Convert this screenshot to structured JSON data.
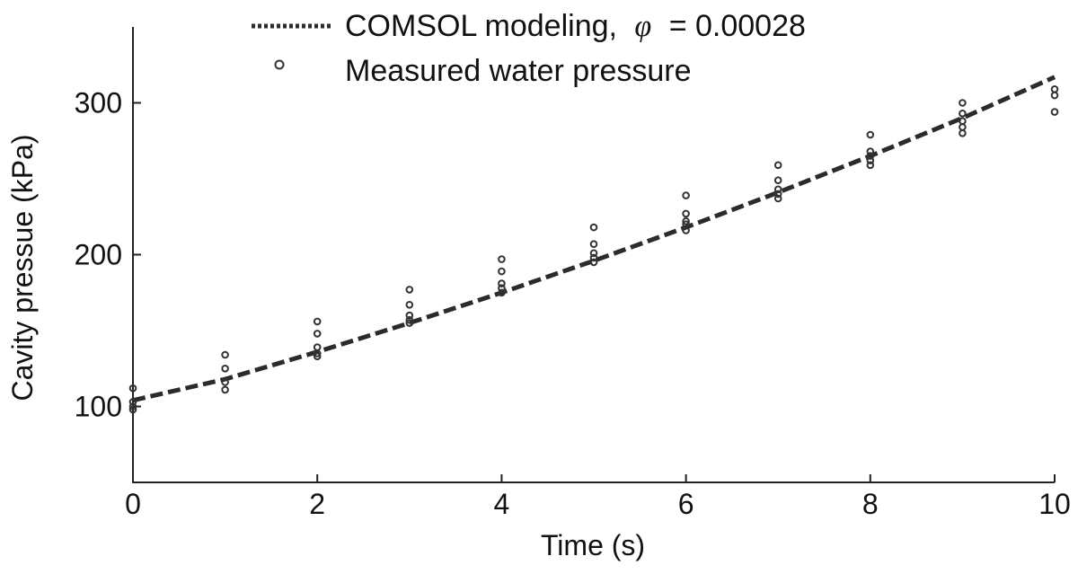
{
  "chart_data": {
    "type": "scatter",
    "xlabel": "Time (s)",
    "ylabel": "Cavity pressue (kPa)",
    "xlim": [
      0,
      10
    ],
    "ylim": [
      50,
      350
    ],
    "x_ticks": [
      0,
      2,
      4,
      6,
      8,
      10
    ],
    "y_ticks": [
      100,
      200,
      300
    ],
    "grid": false,
    "legend_position": "top",
    "series": [
      {
        "name": "COMSOL modeling, φ = 0.00028",
        "kind": "line",
        "style": "dashed",
        "x": [
          0,
          1,
          2,
          3,
          4,
          5,
          6,
          7,
          8,
          9,
          10
        ],
        "y": [
          104,
          118,
          136,
          155,
          175,
          196,
          218,
          241,
          265,
          290,
          317
        ]
      },
      {
        "name": "Measured water pressure",
        "kind": "scatter",
        "marker": "circle",
        "x": [
          0,
          0,
          0,
          0,
          1,
          1,
          1,
          1,
          2,
          2,
          2,
          2,
          2,
          3,
          3,
          3,
          3,
          3,
          4,
          4,
          4,
          4,
          4,
          5,
          5,
          5,
          5,
          5,
          6,
          6,
          6,
          6,
          6,
          7,
          7,
          7,
          7,
          7,
          8,
          8,
          8,
          8,
          8,
          9,
          9,
          9,
          9,
          9,
          10,
          10,
          10
        ],
        "y": [
          112,
          103,
          100,
          98,
          134,
          125,
          116,
          111,
          156,
          148,
          139,
          135,
          133,
          177,
          167,
          160,
          157,
          155,
          197,
          189,
          181,
          178,
          175,
          218,
          207,
          201,
          198,
          195,
          239,
          227,
          222,
          220,
          216,
          259,
          249,
          243,
          240,
          237,
          279,
          268,
          265,
          262,
          259,
          300,
          293,
          288,
          284,
          280,
          309,
          305,
          294
        ]
      }
    ],
    "legend": {
      "line_label": "COMSOL modeling,",
      "line_symbol": "φ",
      "line_value": "= 0.00028",
      "marker_label": "Measured water pressure"
    }
  },
  "colors": {
    "ink": "#222222",
    "line": "#2b2b2b",
    "background": "#ffffff"
  }
}
